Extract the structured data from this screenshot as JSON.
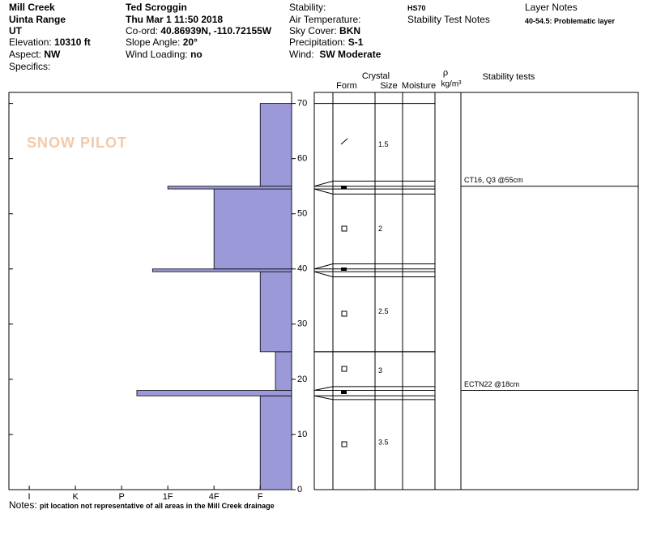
{
  "header": {
    "location": "Mill Creek",
    "range": "Uinta Range",
    "state": "UT",
    "elevation_label": "Elevation:",
    "elevation": "10310 ft",
    "aspect_label": "Aspect:",
    "aspect": "NW",
    "specifics_label": "Specifics:",
    "observer": "Ted Scroggin",
    "date": "Thu Mar 1 11:50 2018",
    "coord_label": "Co-ord:",
    "coord": "40.86939N, -110.72155W",
    "slope_label": "Slope Angle:",
    "slope": "20°",
    "wind_loading_label": "Wind Loading:",
    "wind_loading": "no",
    "stability_label": "Stability:",
    "air_temp_label": "Air Temperature:",
    "sky_label": "Sky Cover:",
    "sky": "BKN",
    "precip_label": "Precipitation:",
    "precip": "S-1",
    "wind_label": "Wind:",
    "wind": "SW Moderate",
    "hs": "HS70",
    "stability_notes_label": "Stability Test Notes",
    "layer_notes_label": "Layer Notes",
    "layer_note": "40-54.5: Problematic layer",
    "notes_label": "Notes:",
    "notes": "pit location not representative of all areas in the Mill Creek drainage",
    "watermark": "SNOW PILOT"
  },
  "chart_data": {
    "type": "snow-profile",
    "color": "#9b99d8",
    "xlim": [
      6.44,
      0.32
    ],
    "xticks": [
      {
        "value": 6,
        "label": "I"
      },
      {
        "value": 5,
        "label": "K"
      },
      {
        "value": 4,
        "label": "P"
      },
      {
        "value": 3,
        "label": "1F"
      },
      {
        "value": 2,
        "label": "4F"
      },
      {
        "value": 1,
        "label": "F"
      }
    ],
    "ylim": [
      0,
      72
    ],
    "yticks": [
      0,
      10,
      20,
      30,
      40,
      50,
      60,
      70
    ],
    "columns": {
      "crystal": "Crystal",
      "form": "Form",
      "size": "Size",
      "moisture": "Moisture",
      "density_symbol": "ρ",
      "density_unit": "kg/m³",
      "stability": "Stability tests"
    },
    "layers": [
      {
        "bottom": 0,
        "top": 17,
        "hardness": 1,
        "size": 3.5
      },
      {
        "bottom": 17,
        "top": 18,
        "hardness": 3.67
      },
      {
        "bottom": 18,
        "top": 25,
        "hardness": 0.67,
        "size": 3
      },
      {
        "bottom": 25,
        "top": 39.5,
        "hardness": 1,
        "size": 2.5
      },
      {
        "bottom": 39.5,
        "top": 40,
        "hardness": 3.33
      },
      {
        "bottom": 40,
        "top": 54.5,
        "hardness": 2,
        "size": 2
      },
      {
        "bottom": 54.5,
        "top": 55,
        "hardness": 3
      },
      {
        "bottom": 55,
        "top": 70,
        "hardness": 1,
        "size": 1.5
      }
    ],
    "tests": [
      {
        "label": "CT16, Q3 @55cm",
        "height": 55
      },
      {
        "label": "ECTN22 @18cm",
        "height": 18
      }
    ]
  }
}
